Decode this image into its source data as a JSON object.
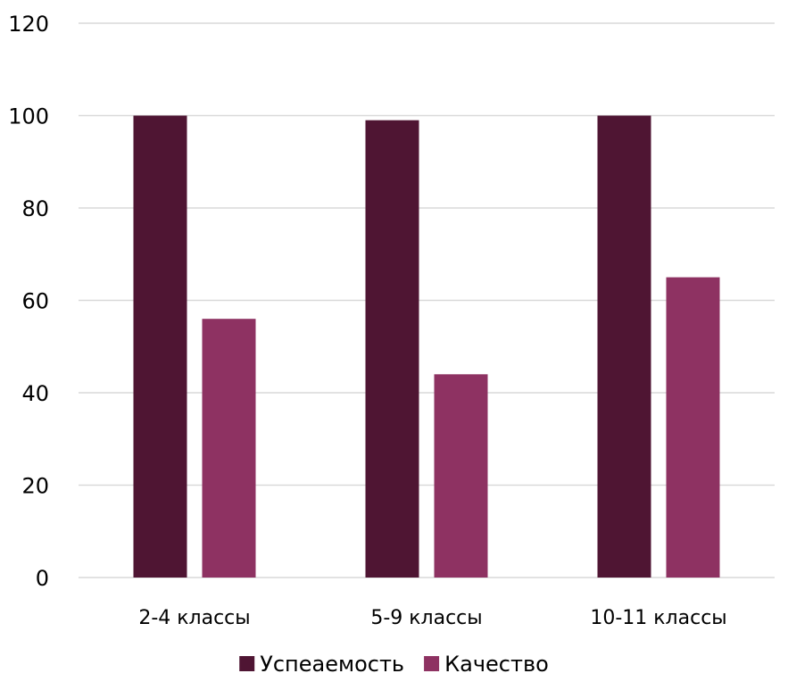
{
  "chart_data": {
    "type": "bar",
    "categories": [
      "2-4 классы",
      "5-9 классы",
      "10-11 классы"
    ],
    "series": [
      {
        "name": "Успеаемость",
        "values": [
          100,
          99,
          100
        ],
        "color": "#4f1533"
      },
      {
        "name": "Качество",
        "values": [
          56,
          44,
          65
        ],
        "color": "#8e3262"
      }
    ],
    "ylim": [
      0,
      120
    ],
    "yticks": [
      0,
      20,
      40,
      60,
      80,
      100,
      120
    ],
    "grid": true,
    "legend_position": "bottom",
    "title": "",
    "xlabel": "",
    "ylabel": ""
  }
}
